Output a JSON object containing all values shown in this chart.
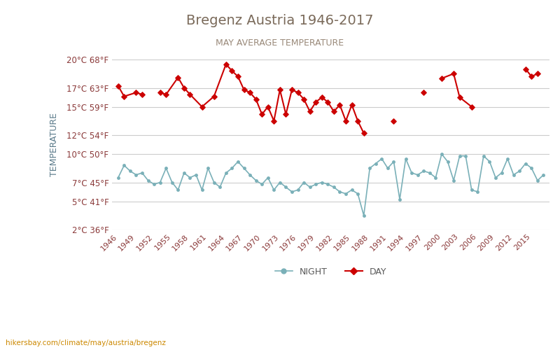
{
  "title": "Bregenz Austria 1946-2017",
  "subtitle": "MAY AVERAGE TEMPERATURE",
  "xlabel": "",
  "ylabel": "TEMPERATURE",
  "title_color": "#7a6a5a",
  "subtitle_color": "#9a8a7a",
  "ylabel_color": "#5a7a8a",
  "background_color": "#ffffff",
  "grid_color": "#cccccc",
  "years": [
    1946,
    1947,
    1948,
    1949,
    1950,
    1951,
    1952,
    1953,
    1954,
    1955,
    1956,
    1957,
    1958,
    1959,
    1960,
    1961,
    1962,
    1963,
    1964,
    1965,
    1966,
    1967,
    1968,
    1969,
    1970,
    1971,
    1972,
    1973,
    1974,
    1975,
    1976,
    1977,
    1978,
    1979,
    1980,
    1981,
    1982,
    1983,
    1984,
    1985,
    1986,
    1987,
    1988,
    1989,
    1990,
    1991,
    1992,
    1993,
    1994,
    1995,
    1996,
    1997,
    1998,
    1999,
    2000,
    2001,
    2002,
    2003,
    2004,
    2005,
    2006,
    2007,
    2008,
    2009,
    2010,
    2011,
    2012,
    2013,
    2014,
    2015,
    2016,
    2017
  ],
  "day_temps": [
    17.2,
    16.1,
    null,
    16.5,
    16.3,
    null,
    null,
    16.5,
    16.3,
    null,
    18.1,
    17.0,
    16.3,
    null,
    15.0,
    null,
    16.1,
    null,
    19.5,
    18.8,
    18.2,
    16.8,
    16.5,
    15.8,
    14.2,
    15.0,
    13.5,
    16.8,
    14.2,
    16.8,
    16.5,
    15.8,
    14.5,
    15.5,
    16.0,
    15.5,
    14.5,
    15.2,
    13.5,
    15.2,
    13.5,
    12.2,
    null,
    null,
    null,
    null,
    null,
    13.5,
    null,
    null,
    null,
    16.5,
    null,
    null,
    null,
    18.0,
    null,
    null,
    18.5,
    16.0,
    null,
    15.0,
    null,
    null,
    null,
    null,
    null,
    null,
    null,
    19.0,
    18.2,
    18.5
  ],
  "night_temps": [
    7.5,
    8.8,
    8.2,
    7.8,
    8.0,
    7.2,
    6.8,
    7.0,
    8.5,
    7.0,
    6.2,
    8.0,
    7.5,
    7.8,
    6.2,
    8.5,
    7.0,
    6.5,
    8.0,
    8.5,
    9.2,
    8.5,
    7.8,
    7.2,
    6.8,
    7.5,
    6.2,
    7.0,
    6.5,
    6.0,
    6.2,
    7.0,
    6.5,
    6.8,
    7.0,
    6.8,
    6.5,
    6.0,
    5.8,
    6.2,
    5.8,
    3.5,
    8.5,
    9.0,
    9.5,
    8.5,
    9.2,
    5.2,
    9.5,
    8.0,
    7.8,
    8.2,
    8.0,
    7.5,
    10.0,
    9.2,
    7.2,
    9.8,
    9.8,
    6.2,
    6.0,
    9.8,
    9.2,
    7.5,
    8.0,
    9.5,
    7.8,
    8.2,
    9.0,
    8.5,
    7.2,
    7.8
  ],
  "day_color": "#cc0000",
  "night_color": "#7ab0b8",
  "day_line_connected": true,
  "ylim_min": 2,
  "ylim_max": 20,
  "yticks_c": [
    2,
    5,
    7,
    10,
    12,
    15,
    17,
    20
  ],
  "yticks_f": [
    36,
    41,
    45,
    50,
    54,
    59,
    63,
    68
  ],
  "xtick_years": [
    1946,
    1949,
    1952,
    1955,
    1958,
    1961,
    1964,
    1967,
    1970,
    1973,
    1976,
    1979,
    1982,
    1985,
    1988,
    1991,
    1994,
    1997,
    2000,
    2003,
    2006,
    2009,
    2012,
    2015
  ],
  "legend_night_label": "NIGHT",
  "legend_day_label": "DAY",
  "watermark": "hikersbay.com/climate/may/austria/bregenz"
}
